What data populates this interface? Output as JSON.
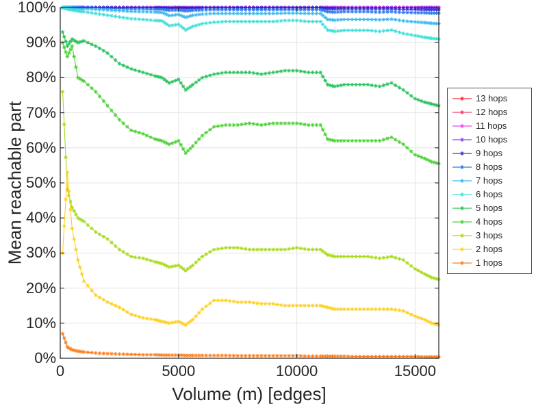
{
  "figure": {
    "background": "#ffffff"
  },
  "chart_data": {
    "type": "line",
    "title": "",
    "xlabel": "Volume (m) [edges]",
    "ylabel": "Mean reachable part",
    "xlim": [
      0,
      16000
    ],
    "ylim": [
      0,
      100
    ],
    "xticks": [
      0,
      5000,
      10000,
      15000
    ],
    "xtick_labels": [
      "0",
      "5000",
      "10000",
      "15000"
    ],
    "yticks": [
      0,
      10,
      20,
      30,
      40,
      50,
      60,
      70,
      80,
      90,
      100
    ],
    "ytick_labels": [
      "0%",
      "10%",
      "20%",
      "30%",
      "40%",
      "50%",
      "60%",
      "70%",
      "80%",
      "90%",
      "100%"
    ],
    "grid": true,
    "legend_position": "right-outside",
    "marker": "asterisk",
    "x": [
      100,
      300,
      500,
      750,
      1000,
      1500,
      2000,
      2500,
      3000,
      3500,
      4000,
      4300,
      4600,
      5000,
      5300,
      5600,
      6000,
      6500,
      7000,
      7500,
      8000,
      8500,
      9000,
      9500,
      10000,
      10500,
      11000,
      11300,
      11600,
      12000,
      12500,
      13000,
      13500,
      14000,
      14500,
      15000,
      15400,
      15700,
      16000
    ],
    "series": [
      {
        "name": "13 hops",
        "color": "#ff2a2a",
        "values": [
          100,
          100,
          100,
          100,
          100,
          100,
          100,
          100,
          100,
          100,
          100,
          100,
          100,
          100,
          100,
          100,
          100,
          100,
          100,
          100,
          100,
          100,
          100,
          100,
          100,
          100,
          100,
          100,
          100,
          100,
          100,
          100,
          100,
          100,
          100,
          100,
          100,
          100,
          100
        ]
      },
      {
        "name": "12 hops",
        "color": "#f03a70",
        "values": [
          100,
          100,
          100,
          100,
          100,
          100,
          100,
          100,
          100,
          100,
          100,
          100,
          100,
          100,
          100,
          100,
          100,
          100,
          100,
          100,
          100,
          100,
          100,
          100,
          100,
          100,
          100,
          100,
          100,
          100,
          100,
          100,
          100,
          100,
          100,
          100,
          100,
          100,
          100
        ]
      },
      {
        "name": "11 hops",
        "color": "#ee44ee",
        "values": [
          100,
          100,
          100,
          100,
          100,
          100,
          100,
          100,
          100,
          100,
          100,
          100,
          100,
          100,
          100,
          100,
          100,
          100,
          100,
          100,
          100,
          100,
          100,
          100,
          100,
          100,
          100,
          100,
          100,
          100,
          100,
          100,
          100,
          100,
          100,
          100,
          100,
          100,
          100
        ]
      },
      {
        "name": "10 hops",
        "color": "#9a3df0",
        "values": [
          100,
          100,
          100,
          100,
          100,
          100,
          100,
          100,
          100,
          100,
          100,
          100,
          100,
          100,
          100,
          100,
          100,
          100,
          100,
          100,
          100,
          100,
          100,
          100,
          100,
          100,
          100,
          100,
          100,
          100,
          100,
          100,
          100,
          100,
          100,
          100,
          100,
          100,
          100
        ]
      },
      {
        "name": "9 hops",
        "color": "#3436d8",
        "values": [
          100,
          100,
          100,
          100,
          100,
          100,
          100,
          99.9,
          99.9,
          99.9,
          99.9,
          99.9,
          99.8,
          99.9,
          99.8,
          99.8,
          99.9,
          99.9,
          99.9,
          99.9,
          99.9,
          99.9,
          99.9,
          99.9,
          99.9,
          99.9,
          99.9,
          99.6,
          99.6,
          99.6,
          99.6,
          99.6,
          99.6,
          99.6,
          99.5,
          99.5,
          99.4,
          99.4,
          99.4
        ]
      },
      {
        "name": "8 hops",
        "color": "#2f7af0",
        "values": [
          100,
          100,
          100,
          100,
          99.9,
          99.9,
          99.8,
          99.7,
          99.6,
          99.6,
          99.5,
          99.5,
          99.2,
          99.3,
          99,
          99.2,
          99.3,
          99.4,
          99.4,
          99.4,
          99.4,
          99.4,
          99.4,
          99.4,
          99.4,
          99.4,
          99.4,
          98.8,
          98.7,
          98.8,
          98.8,
          98.8,
          98.7,
          98.8,
          98.6,
          98.5,
          98.5,
          98.4,
          98.4
        ]
      },
      {
        "name": "7 hops",
        "color": "#3cb9f0",
        "values": [
          100,
          100,
          99.9,
          99.8,
          99.7,
          99.5,
          99.3,
          99.1,
          98.9,
          98.8,
          98.7,
          98.6,
          97.7,
          98,
          97.2,
          97.8,
          98.1,
          98.3,
          98.3,
          98.3,
          98.3,
          98.3,
          98.3,
          98.4,
          98.4,
          98.3,
          98.3,
          96.6,
          96.4,
          96.6,
          96.6,
          96.6,
          96.5,
          96.7,
          96.2,
          95.9,
          95.7,
          95.5,
          95.4
        ]
      },
      {
        "name": "6 hops",
        "color": "#3fdfd9",
        "values": [
          100,
          99.6,
          99.3,
          99,
          98.8,
          98.3,
          97.8,
          97.3,
          96.8,
          96.6,
          96.3,
          96.2,
          94.8,
          95.2,
          93.6,
          94.6,
          95.4,
          95.8,
          96,
          96,
          96,
          96,
          96,
          96.3,
          96.3,
          96,
          96,
          93.6,
          93.2,
          93.5,
          93.5,
          93.5,
          93.2,
          93.6,
          92.6,
          92,
          91.5,
          91.2,
          91
        ]
      },
      {
        "name": "5 hops",
        "color": "#28c45c",
        "values": [
          93,
          89,
          91,
          90,
          90.5,
          89,
          87,
          84,
          82.5,
          81.5,
          80.5,
          80,
          78.5,
          79.5,
          76.5,
          78,
          80,
          81,
          81.5,
          81.5,
          81.5,
          81,
          81.5,
          82,
          82,
          81.5,
          81.5,
          78,
          77.5,
          78,
          78,
          78,
          77.5,
          78.5,
          76.5,
          74,
          73,
          72.5,
          72
        ]
      },
      {
        "name": "4 hops",
        "color": "#4cd236",
        "values": [
          90,
          86,
          89,
          80,
          79,
          76,
          72,
          68,
          65,
          64,
          62.5,
          62,
          61,
          62,
          58.5,
          60.5,
          63.5,
          66,
          66.5,
          66.5,
          67,
          66.5,
          67,
          67,
          67,
          66.5,
          66.5,
          62.5,
          62,
          62,
          62,
          62,
          62,
          63,
          61,
          58,
          57,
          56,
          55.5
        ]
      },
      {
        "name": "3 hops",
        "color": "#a8dc19",
        "values": [
          76,
          48,
          43,
          40,
          39,
          36,
          34,
          31,
          29,
          28.5,
          27.5,
          27,
          26,
          26.5,
          25,
          26.5,
          29,
          31,
          31.5,
          31.5,
          31,
          31,
          31,
          31,
          31.5,
          31,
          31,
          29.5,
          29,
          29,
          29,
          29,
          28.5,
          29,
          28,
          25.5,
          24,
          23,
          22.5
        ]
      },
      {
        "name": "2 hops",
        "color": "#ffd01e",
        "values": [
          30,
          53,
          37,
          28,
          22,
          18,
          16,
          14.5,
          12.5,
          11.5,
          11,
          10.5,
          10,
          10.5,
          9.5,
          11,
          14,
          16.5,
          16.5,
          16,
          16,
          15.5,
          15.5,
          15,
          15,
          15,
          15,
          14.5,
          14,
          14,
          14,
          14,
          14,
          14,
          13.5,
          12,
          11,
          10,
          9.5
        ]
      },
      {
        "name": "1 hops",
        "color": "#ff7f1e",
        "values": [
          7,
          3.2,
          2.4,
          2,
          1.8,
          1.5,
          1.3,
          1.2,
          1.1,
          1,
          1,
          0.9,
          0.9,
          0.9,
          0.8,
          0.8,
          0.8,
          0.8,
          0.8,
          0.7,
          0.7,
          0.7,
          0.7,
          0.7,
          0.7,
          0.6,
          0.6,
          0.6,
          0.6,
          0.6,
          0.5,
          0.5,
          0.5,
          0.5,
          0.5,
          0.5,
          0.4,
          0.4,
          0.4
        ]
      }
    ]
  }
}
